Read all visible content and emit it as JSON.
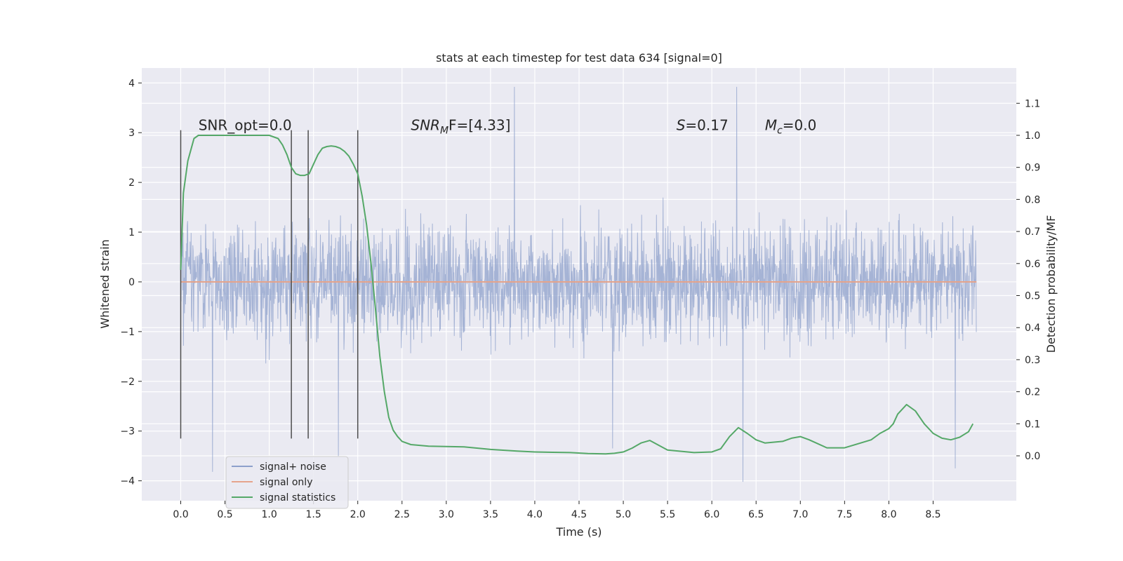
{
  "chart_data": {
    "type": "line",
    "title": "stats at each timestep for test data 634 [signal=0]",
    "xlabel": "Time (s)",
    "ylabel": "Whitened strain",
    "ylabel_right": "Detection probability/MF",
    "xlim": [
      -0.44,
      9.44
    ],
    "ylim": [
      -4.4,
      4.3
    ],
    "ylim_right": [
      -0.14,
      1.21
    ],
    "grid": true,
    "x_ticks": [
      0.0,
      0.5,
      1.0,
      1.5,
      2.0,
      2.5,
      3.0,
      3.5,
      4.0,
      4.5,
      5.0,
      5.5,
      6.0,
      6.5,
      7.0,
      7.5,
      8.0,
      8.5
    ],
    "x_tick_labels": [
      "0.0",
      "0.5",
      "1.0",
      "1.5",
      "2.0",
      "2.5",
      "3.0",
      "3.5",
      "4.0",
      "4.5",
      "5.0",
      "5.5",
      "6.0",
      "6.5",
      "7.0",
      "7.5",
      "8.0",
      "8.5"
    ],
    "y_ticks": [
      4,
      3,
      2,
      1,
      0,
      -1,
      -2,
      -3,
      -4
    ],
    "y_tick_labels": [
      "4",
      "3",
      "2",
      "1",
      "0",
      "−1",
      "−2",
      "−3",
      "−4"
    ],
    "y2_ticks": [
      1.1,
      1.0,
      0.9,
      0.8,
      0.7,
      0.6,
      0.5,
      0.4,
      0.3,
      0.2,
      0.1,
      0.0
    ],
    "y2_tick_labels": [
      "1.1",
      "1.0",
      "0.9",
      "0.8",
      "0.7",
      "0.6",
      "0.5",
      "0.4",
      "0.3",
      "0.2",
      "0.1",
      "0.0"
    ],
    "legend_position": "lower-left",
    "series": [
      {
        "name": "signal+ noise",
        "axis": "left",
        "color": "#8da0cb",
        "description_range": [
          -3.2,
          3.2
        ],
        "x_span": [
          0.0,
          8.99
        ],
        "sample_rate": 256,
        "dense_band": [
          -1.5,
          1.5
        ],
        "marked_extremes": [
          {
            "x": 0.36,
            "y": -3.82
          },
          {
            "x": 3.77,
            "y": 3.92
          },
          {
            "x": 6.35,
            "y": -4.02
          },
          {
            "x": 6.28,
            "y": 3.92
          },
          {
            "x": 1.78,
            "y": -3.5
          },
          {
            "x": 4.88,
            "y": -3.35
          },
          {
            "x": 8.75,
            "y": -3.75
          }
        ]
      },
      {
        "name": "signal only",
        "axis": "left",
        "color": "#e5a48c",
        "x": [
          0.0,
          8.99
        ],
        "y": [
          0.0,
          0.0
        ]
      },
      {
        "name": "signal statistics",
        "axis": "right",
        "color": "#55a868",
        "x": [
          0.0,
          0.03,
          0.08,
          0.12,
          0.15,
          0.2,
          0.3,
          0.5,
          0.8,
          1.0,
          1.1,
          1.15,
          1.2,
          1.25,
          1.3,
          1.35,
          1.4,
          1.45,
          1.5,
          1.55,
          1.6,
          1.65,
          1.7,
          1.75,
          1.8,
          1.85,
          1.9,
          1.95,
          2.0,
          2.05,
          2.1,
          2.15,
          2.2,
          2.25,
          2.3,
          2.35,
          2.4,
          2.45,
          2.5,
          2.6,
          2.8,
          3.0,
          3.2,
          3.5,
          3.8,
          4.0,
          4.2,
          4.4,
          4.6,
          4.8,
          4.9,
          5.0,
          5.1,
          5.2,
          5.3,
          5.5,
          5.8,
          6.0,
          6.1,
          6.2,
          6.3,
          6.4,
          6.5,
          6.6,
          6.8,
          6.9,
          7.0,
          7.1,
          7.3,
          7.5,
          7.8,
          7.9,
          8.0,
          8.05,
          8.1,
          8.2,
          8.3,
          8.4,
          8.5,
          8.6,
          8.7,
          8.8,
          8.9,
          8.95
        ],
        "y": [
          0.58,
          0.82,
          0.92,
          0.96,
          0.99,
          1.0,
          1.0,
          1.0,
          1.0,
          1.0,
          0.99,
          0.97,
          0.94,
          0.9,
          0.88,
          0.875,
          0.875,
          0.88,
          0.91,
          0.94,
          0.96,
          0.965,
          0.967,
          0.965,
          0.96,
          0.95,
          0.935,
          0.91,
          0.88,
          0.81,
          0.72,
          0.6,
          0.46,
          0.31,
          0.2,
          0.12,
          0.08,
          0.06,
          0.045,
          0.035,
          0.03,
          0.029,
          0.028,
          0.02,
          0.015,
          0.012,
          0.011,
          0.01,
          0.007,
          0.006,
          0.008,
          0.012,
          0.024,
          0.04,
          0.048,
          0.018,
          0.01,
          0.012,
          0.022,
          0.06,
          0.088,
          0.07,
          0.05,
          0.04,
          0.045,
          0.055,
          0.06,
          0.05,
          0.025,
          0.025,
          0.05,
          0.07,
          0.085,
          0.1,
          0.13,
          0.16,
          0.14,
          0.1,
          0.07,
          0.055,
          0.05,
          0.058,
          0.075,
          0.1
        ]
      }
    ],
    "vertical_markers": {
      "color": "#4d4d4d",
      "x": [
        0.0,
        1.25,
        1.44,
        2.0
      ],
      "y_range": [
        -3.15,
        3.05
      ]
    },
    "annotations": [
      {
        "id": "snr-opt",
        "text": "SNR_opt=0.0",
        "x": 0.2,
        "y": 3.05
      },
      {
        "id": "snr-mf",
        "base": "SNR",
        "sub": "M",
        "tail": "F=[4.33]",
        "x": 2.6,
        "y": 3.05
      },
      {
        "id": "s-stat",
        "base": "S",
        "tail": "=0.17",
        "x": 5.6,
        "y": 3.05
      },
      {
        "id": "mc",
        "base": "M",
        "sub": "c",
        "tail": "=0.0",
        "x": 6.6,
        "y": 3.05
      }
    ],
    "legend": [
      {
        "label": "signal+ noise",
        "color": "#8da0cb"
      },
      {
        "label": "signal only",
        "color": "#e5a48c"
      },
      {
        "label": "signal statistics",
        "color": "#55a868"
      }
    ]
  }
}
